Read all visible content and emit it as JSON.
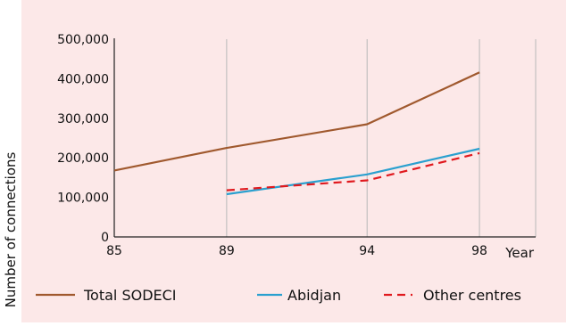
{
  "chart_data": {
    "type": "line",
    "x": [
      85,
      89,
      94,
      98
    ],
    "xticks": [
      "85",
      "89",
      "94",
      "98"
    ],
    "xlabel": "Year",
    "ylabel": "Number of connections",
    "yticks": [
      "0",
      "100,000",
      "200,000",
      "300,000",
      "400,000",
      "500,000"
    ],
    "ylim": [
      0,
      500000
    ],
    "xlim": [
      85,
      100
    ],
    "grid": {
      "vertical": true,
      "horizontal": false
    },
    "legend_position": "bottom",
    "series": [
      {
        "name": "Total  SODECI",
        "x": [
          85,
          89,
          94,
          98
        ],
        "values": [
          168000,
          225000,
          285000,
          416000
        ],
        "color": "#a0592e",
        "style": "solid"
      },
      {
        "name": "Abidjan",
        "x": [
          89,
          94,
          98
        ],
        "values": [
          108000,
          158000,
          223000
        ],
        "color": "#2aa0cf",
        "style": "solid"
      },
      {
        "name": "Other centres",
        "x": [
          89,
          94,
          98
        ],
        "values": [
          118000,
          143000,
          212000
        ],
        "color": "#e0191e",
        "style": "dashed"
      }
    ]
  },
  "colors": {
    "panel_background": "#fce8e8",
    "grid": "#b8b8b8",
    "axis": "#222222"
  }
}
